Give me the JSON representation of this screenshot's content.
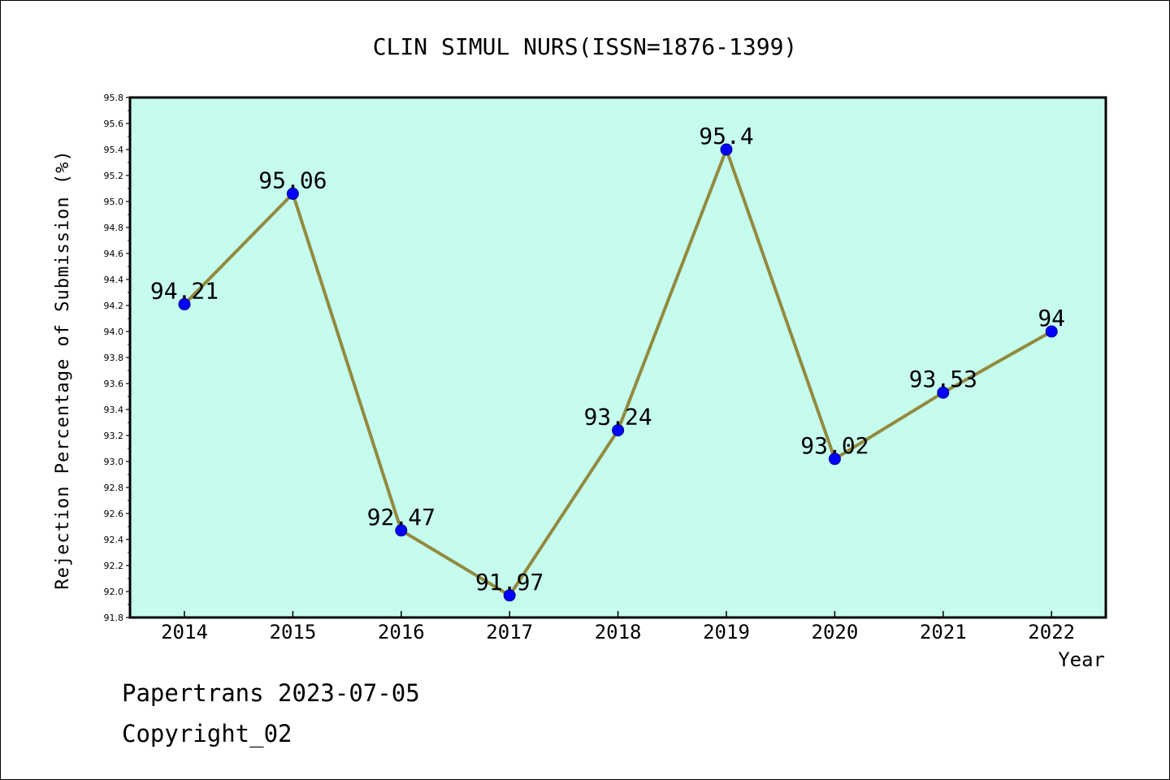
{
  "chart_data": {
    "type": "line",
    "title": "CLIN SIMUL NURS(ISSN=1876-1399)",
    "xlabel": "Year",
    "ylabel": "Rejection Percentage of Submission (%)",
    "categories": [
      "2014",
      "2015",
      "2016",
      "2017",
      "2018",
      "2019",
      "2020",
      "2021",
      "2022"
    ],
    "series": [
      {
        "values": [
          94.21,
          95.06,
          92.47,
          91.97,
          93.24,
          95.4,
          93.02,
          93.53,
          94
        ],
        "data_labels": [
          "94.21",
          "95.06",
          "92.47",
          "91.97",
          "93.24",
          "95.4",
          "93.02",
          "93.53",
          "94"
        ]
      }
    ],
    "ylim": [
      91.8,
      95.8
    ],
    "y_ticks": [
      "91.8",
      "92.0",
      "92.2",
      "92.4",
      "92.6",
      "92.8",
      "93.0",
      "93.2",
      "93.4",
      "93.6",
      "93.8",
      "94.0",
      "94.2",
      "94.4",
      "94.6",
      "94.8",
      "95.0",
      "95.2",
      "95.4",
      "95.6",
      "95.8"
    ],
    "grid": false,
    "legend": "none",
    "colors": {
      "plot_background": "#c6fcee",
      "line": "#928a3e",
      "marker": "#0000ff"
    }
  },
  "footer": {
    "source": "Papertrans 2023-07-05",
    "copyright": "Copyright_02"
  }
}
